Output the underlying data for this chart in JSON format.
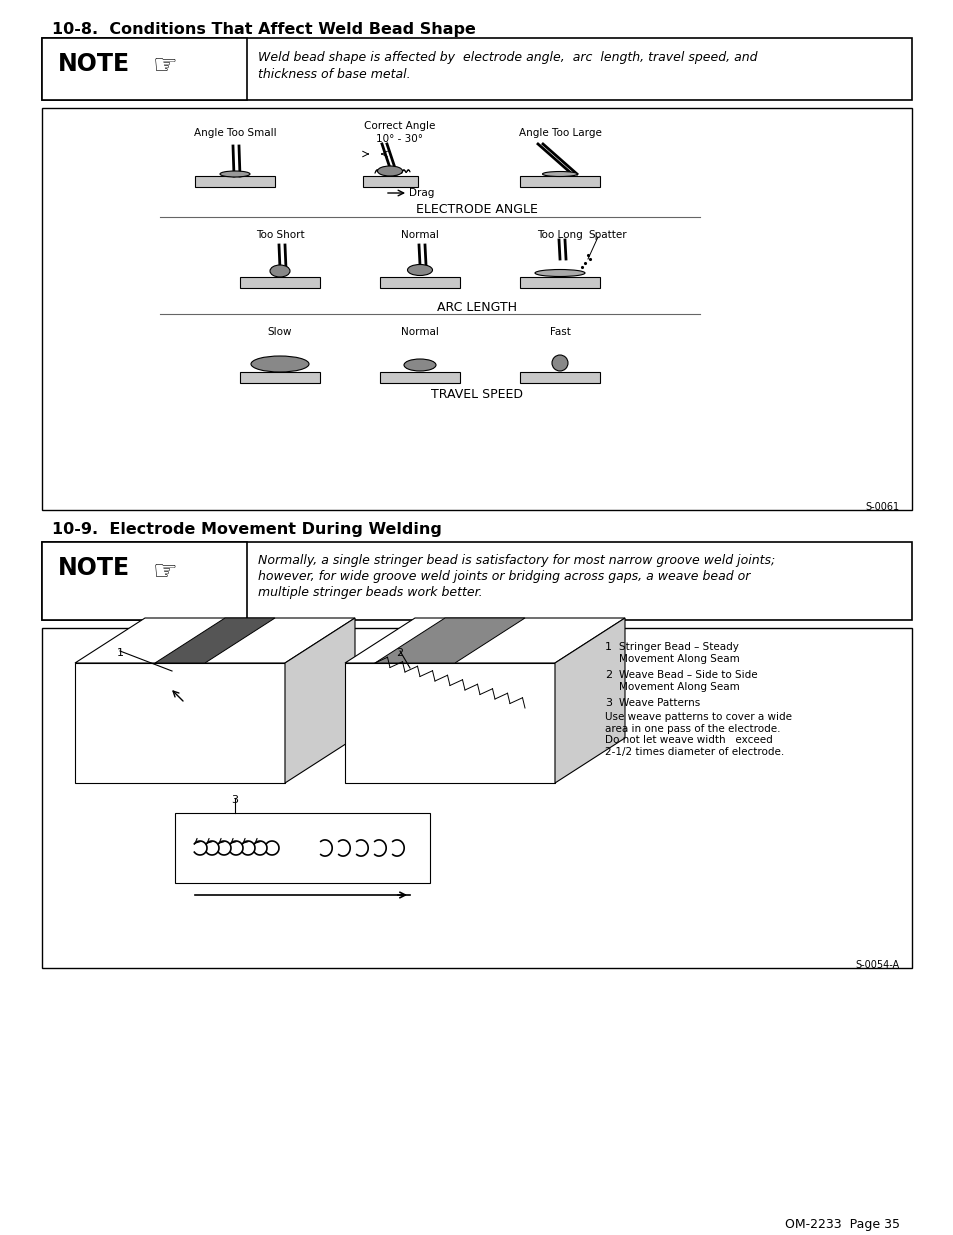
{
  "title_1": "10-8.  Conditions That Affect Weld Bead Shape",
  "title_2": "10-9.  Electrode Movement During Welding",
  "note1_text_line1": "Weld bead shape is affected by  electrode angle,  arc  length, travel speed, and",
  "note1_text_line2": "thickness of base metal.",
  "note2_text_line1": "Normally, a single stringer bead is satisfactory for most narrow groove weld joints;",
  "note2_text_line2": "however, for wide groove weld joints or bridging across gaps, a weave bead or",
  "note2_text_line3": "multiple stringer beads work better.",
  "electrode_angle_label": "ELECTRODE ANGLE",
  "arc_length_label": "ARC LENGTH",
  "travel_speed_label": "TRAVEL SPEED",
  "drag_label": "Drag",
  "correct_angle_label": "Correct Angle",
  "angle_range": "10° - 30°",
  "angle_too_small": "Angle Too Small",
  "angle_too_large": "Angle Too Large",
  "too_short": "Too Short",
  "normal": "Normal",
  "too_long": "Too Long",
  "slow": "Slow",
  "fast": "Fast",
  "spatter": "Spatter",
  "legend_1_num": "1",
  "legend_1_text": "Stringer Bead – Steady\nMovement Along Seam",
  "legend_2_num": "2",
  "legend_2_text": "Weave Bead – Side to Side\nMovement Along Seam",
  "legend_3_num": "3",
  "legend_3_text": "Weave Patterns",
  "legend_desc": "Use weave patterns to cover a wide\narea in one pass of the electrode.\nDo not let weave width   exceed\n2-1/2 times diameter of electrode.",
  "s0061": "S-0061",
  "s0054a": "S-0054-A",
  "page_num": "OM-2233  Page 35",
  "note_label": "NOTE"
}
